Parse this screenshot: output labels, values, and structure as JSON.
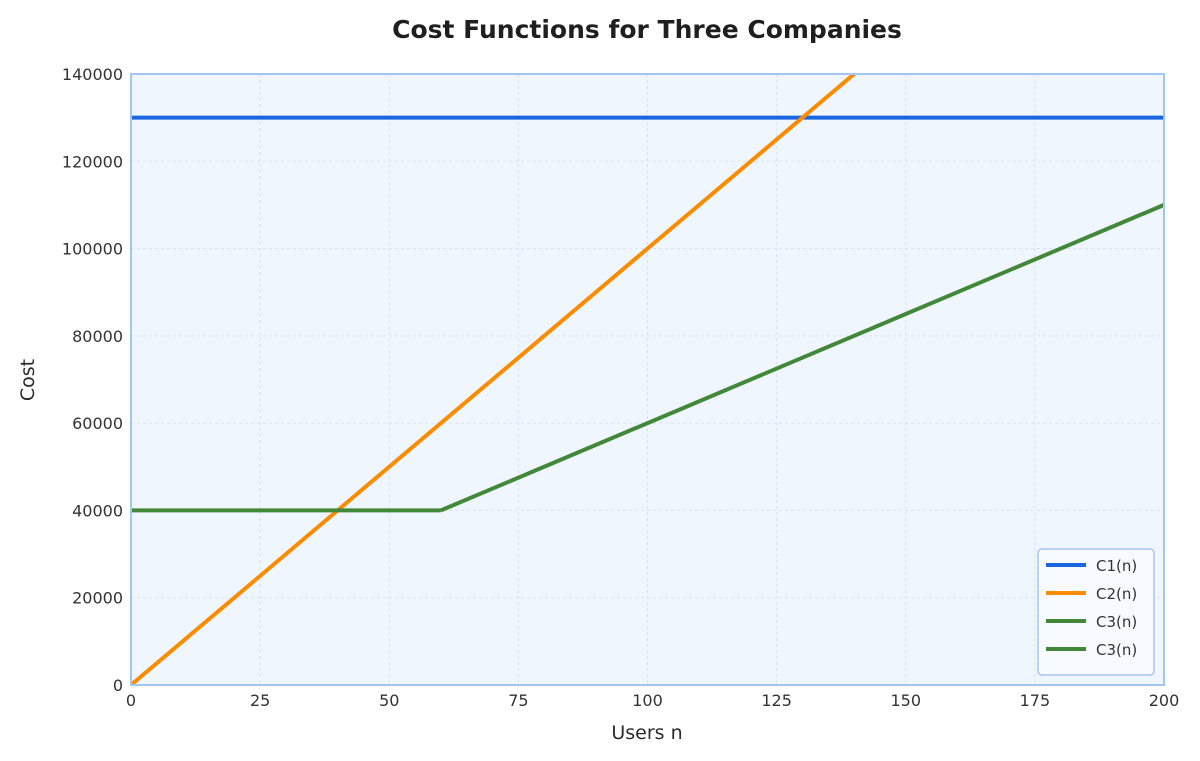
{
  "chart_data": {
    "type": "line",
    "title": "Cost Functions for Three Companies",
    "xlabel": "Users n",
    "ylabel": "Cost",
    "xlim": [
      0,
      200
    ],
    "ylim": [
      0,
      140000
    ],
    "xticks": [
      "0",
      "25",
      "50",
      "75",
      "100",
      "125",
      "150",
      "175",
      "200"
    ],
    "yticks": [
      "0",
      "20000",
      "40000",
      "60000",
      "80000",
      "100000",
      "120000",
      "140000"
    ],
    "grid": true,
    "legend_position": "bottom-right",
    "series": [
      {
        "name": "C1(n)",
        "color": "#1a66e0",
        "x": [
          0,
          200
        ],
        "y": [
          130000,
          130000
        ]
      },
      {
        "name": "C2(n)",
        "color": "#fb8c00",
        "x": [
          0,
          140
        ],
        "y": [
          0,
          140000
        ]
      },
      {
        "name": "C3(n)",
        "color": "#43873a",
        "x": [
          0,
          60
        ],
        "y": [
          40000,
          40000
        ]
      },
      {
        "name": "C3(n)",
        "color": "#43873a",
        "x": [
          60,
          200
        ],
        "y": [
          40000,
          110000
        ]
      }
    ]
  }
}
